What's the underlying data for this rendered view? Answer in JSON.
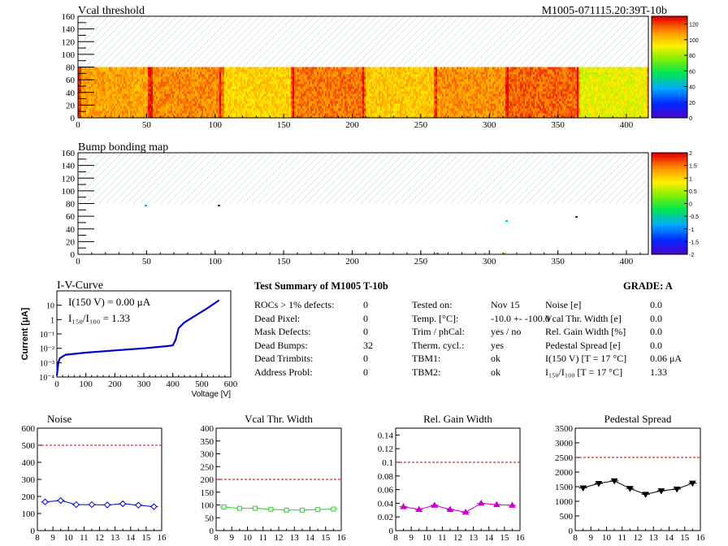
{
  "map1": {
    "title": "Vcal threshold",
    "module_label": "M1005-071115.20:39T-10b",
    "x_ticks": [
      "0",
      "50",
      "100",
      "150",
      "200",
      "250",
      "300",
      "350",
      "400"
    ],
    "y_ticks": [
      "0",
      "20",
      "40",
      "60",
      "80",
      "100",
      "120",
      "140",
      "160"
    ],
    "palette_ticks": [
      "0",
      "20",
      "40",
      "60",
      "80",
      "100",
      "120"
    ],
    "xlim": [
      0,
      416
    ],
    "ylim": [
      0,
      160
    ],
    "zlim": [
      0,
      130
    ]
  },
  "map2": {
    "title": "Bump bonding map",
    "x_ticks": [
      "0",
      "50",
      "100",
      "150",
      "200",
      "250",
      "300",
      "350",
      "400"
    ],
    "y_ticks": [
      "0",
      "20",
      "40",
      "60",
      "80",
      "100",
      "120",
      "140",
      "160"
    ],
    "palette_ticks": [
      "-2",
      "-1.5",
      "-1",
      "-0.5",
      "0",
      "0.5",
      "1",
      "1.5",
      "2"
    ],
    "xlim": [
      0,
      416
    ],
    "ylim": [
      0,
      160
    ],
    "zlim": [
      -2,
      2
    ]
  },
  "iv": {
    "title": "I-V-Curve",
    "ylabel": "Current [μA]",
    "xlabel": "Voltage [V]",
    "x_ticks": [
      "0",
      "100",
      "200",
      "300",
      "400",
      "500",
      "600"
    ],
    "y_ticks": [
      "10⁻⁴",
      "10⁻³",
      "10⁻²",
      "10⁻¹",
      "1",
      "10"
    ],
    "legend_i150": "I(150 V) = 0.00 μA",
    "legend_ratio": "I₁₅₀/I₁₀₀ =  1.33"
  },
  "summary": {
    "title": "Test Summary of M1005     T-10b",
    "grade": "GRADE:  A",
    "col1": [
      {
        "label": "ROCs > 1% defects:",
        "value": "0"
      },
      {
        "label": "Dead Pixel:",
        "value": "0"
      },
      {
        "label": "Mask Defects:",
        "value": "0"
      },
      {
        "label": "Dead Bumps:",
        "value": "32"
      },
      {
        "label": "Dead Trimbits:",
        "value": "0"
      },
      {
        "label": "Address Probl:",
        "value": "0"
      }
    ],
    "col2": [
      {
        "label": "Tested on:",
        "value": "Nov 15"
      },
      {
        "label": "Temp. [°C]:",
        "value": "-10.0 +- -100.0"
      },
      {
        "label": "Trim / phCal:",
        "value": "yes / no"
      },
      {
        "label": "Therm. cycl.:",
        "value": "yes"
      },
      {
        "label": "TBM1:",
        "value": "ok"
      },
      {
        "label": "TBM2:",
        "value": "ok"
      }
    ],
    "col3": [
      {
        "label": "Noise [e]",
        "value": "0.0"
      },
      {
        "label": "Vcal Thr. Width [e]",
        "value": "0.0"
      },
      {
        "label": "Rel. Gain Width [%]",
        "value": "0.0"
      },
      {
        "label": "Pedestal Spread [e]",
        "value": "0.0"
      },
      {
        "label": "I(150 V) [T = 17 °C]",
        "value": "0.06 μA"
      },
      {
        "label": "I₁₅₀/I₁₀₀  [T = 17 °C]",
        "value": "1.33"
      }
    ]
  },
  "chart_data": [
    {
      "type": "scatter",
      "title": "Noise",
      "x": [
        8.5,
        9.5,
        10.5,
        11.5,
        12.5,
        13.5,
        14.5,
        15.5
      ],
      "y": [
        168,
        176,
        152,
        152,
        150,
        157,
        149,
        140
      ],
      "xlim": [
        8,
        16
      ],
      "ylim": [
        0,
        600
      ],
      "x_ticks": [
        "8",
        "9",
        "10",
        "11",
        "12",
        "13",
        "14",
        "15",
        "16"
      ],
      "y_ticks": [
        "0",
        "100",
        "200",
        "300",
        "400",
        "500",
        "600"
      ],
      "threshold": 500,
      "color": "#0000cc",
      "marker": "diamond"
    },
    {
      "type": "scatter",
      "title": "Vcal Thr. Width",
      "x": [
        8.5,
        9.5,
        10.5,
        11.5,
        12.5,
        13.5,
        14.5,
        15.5
      ],
      "y": [
        92,
        87,
        87,
        83,
        80,
        80,
        82,
        84
      ],
      "xlim": [
        8,
        16
      ],
      "ylim": [
        0,
        400
      ],
      "x_ticks": [
        "8",
        "9",
        "10",
        "11",
        "12",
        "13",
        "14",
        "15",
        "16"
      ],
      "y_ticks": [
        "0",
        "50",
        "100",
        "150",
        "200",
        "250",
        "300",
        "350",
        "400"
      ],
      "threshold": 200,
      "color": "#33cc33",
      "marker": "square"
    },
    {
      "type": "scatter",
      "title": "Rel. Gain Width",
      "x": [
        8.5,
        9.5,
        10.5,
        11.5,
        12.5,
        13.5,
        14.5,
        15.5
      ],
      "y": [
        0.035,
        0.031,
        0.037,
        0.031,
        0.027,
        0.04,
        0.038,
        0.037
      ],
      "xlim": [
        8,
        16
      ],
      "ylim": [
        0,
        0.15
      ],
      "x_ticks": [
        "8",
        "9",
        "10",
        "11",
        "12",
        "13",
        "14",
        "15",
        "16"
      ],
      "y_ticks": [
        "0",
        "0.02",
        "0.04",
        "0.06",
        "0.08",
        "0.1",
        "0.12",
        "0.14"
      ],
      "threshold": 0.1,
      "color": "#cc00cc",
      "marker": "triangle"
    },
    {
      "type": "scatter",
      "title": "Pedestal Spread",
      "x": [
        8.5,
        9.5,
        10.5,
        11.5,
        12.5,
        13.5,
        14.5,
        15.5
      ],
      "y": [
        1460,
        1610,
        1700,
        1440,
        1240,
        1360,
        1420,
        1620
      ],
      "xlim": [
        8,
        16
      ],
      "ylim": [
        0,
        3500
      ],
      "x_ticks": [
        "8",
        "9",
        "10",
        "11",
        "12",
        "13",
        "14",
        "15",
        "16"
      ],
      "y_ticks": [
        "0",
        "500",
        "1000",
        "1500",
        "2000",
        "2500",
        "3000",
        "3500"
      ],
      "threshold": 2500,
      "color": "#000000",
      "marker": "triangle-down"
    }
  ]
}
